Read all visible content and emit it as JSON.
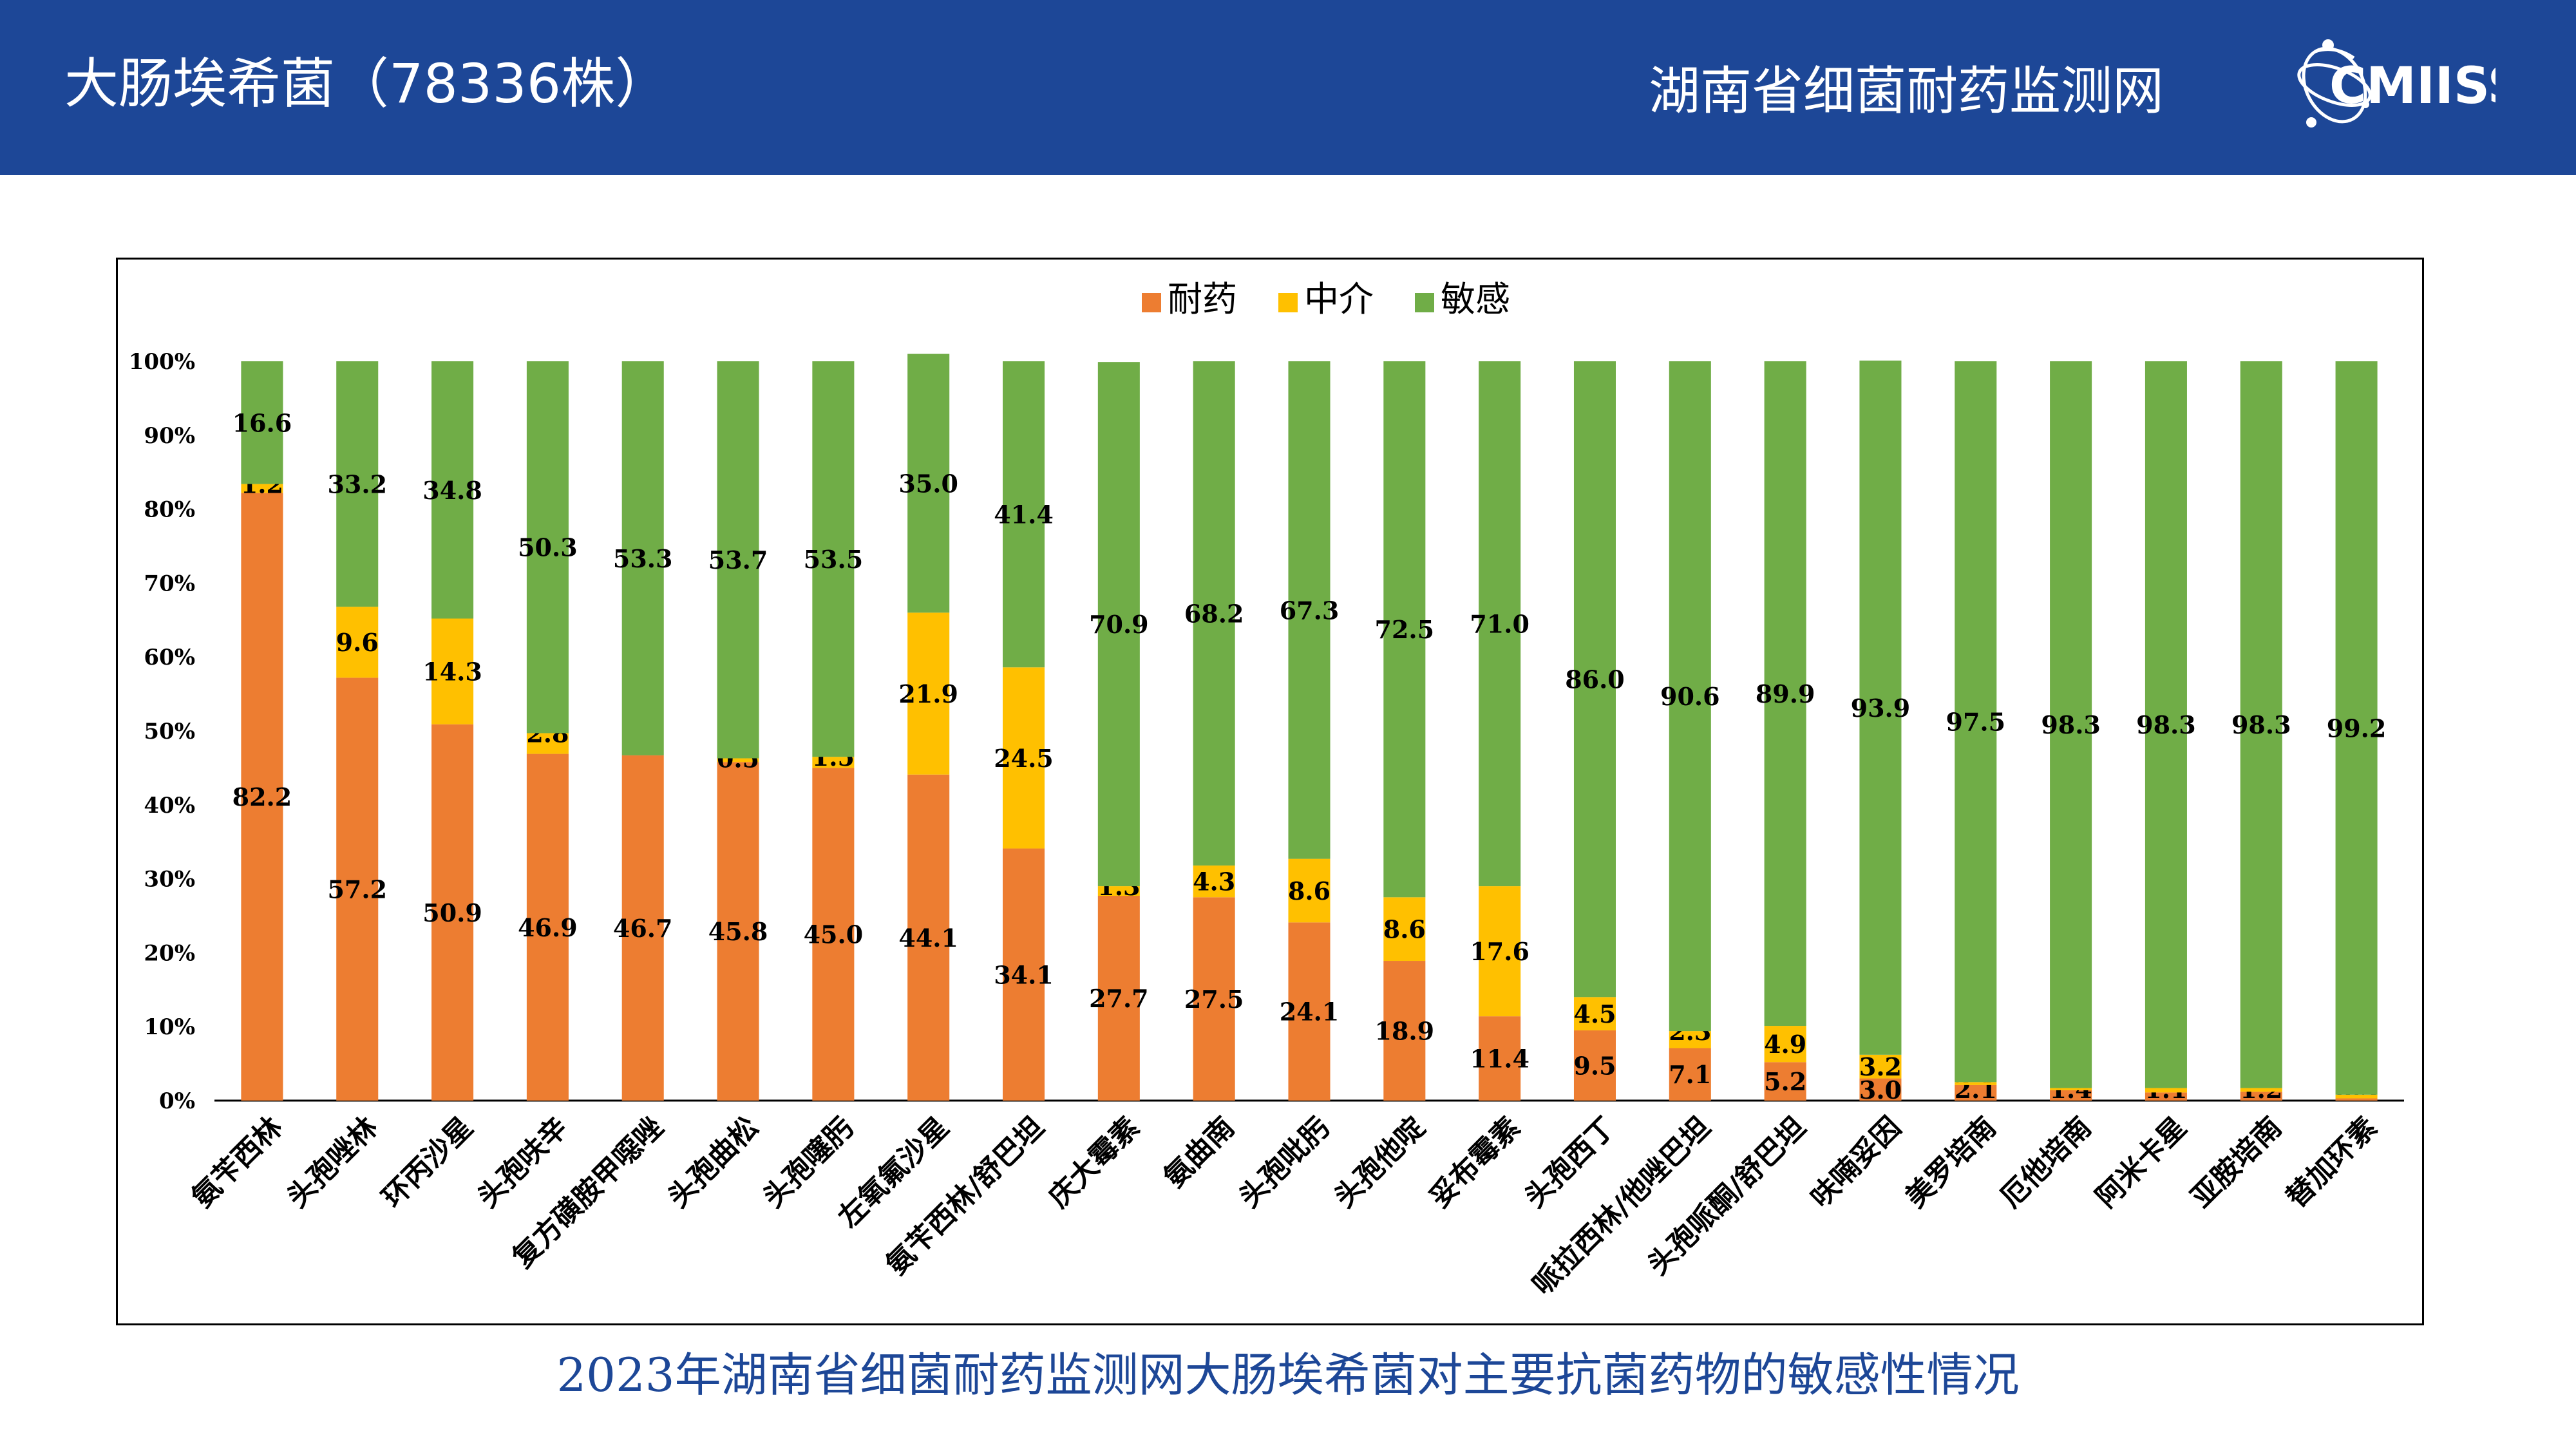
{
  "header": {
    "title": "大肠埃希菌（78336株）",
    "network_name": "湖南省细菌耐药监测网",
    "logo_text": "CMIISS",
    "background_color": "#1d4797"
  },
  "caption": "2023年湖南省细菌耐药监测网大肠埃希菌对主要抗菌药物的敏感性情况",
  "chart_data": {
    "type": "bar",
    "stacked": true,
    "percent_stacked": true,
    "title": "",
    "xlabel": "",
    "ylabel": "",
    "ylim": [
      0,
      100
    ],
    "yticks": [
      "0%",
      "10%",
      "20%",
      "30%",
      "40%",
      "50%",
      "60%",
      "70%",
      "80%",
      "90%",
      "100%"
    ],
    "legend_position": "top-center",
    "grid": false,
    "categories": [
      "氨苄西林",
      "头孢唑林",
      "环丙沙星",
      "头孢呋辛",
      "复方磺胺甲噁唑",
      "头孢曲松",
      "头孢噻肟",
      "左氧氟沙星",
      "氨苄西林/舒巴坦",
      "庆大霉素",
      "氨曲南",
      "头孢吡肟",
      "头孢他啶",
      "妥布霉素",
      "头孢西丁",
      "哌拉西林/他唑巴坦",
      "头孢哌酮/舒巴坦",
      "呋喃妥因",
      "美罗培南",
      "厄他培南",
      "阿米卡星",
      "亚胺培南",
      "替加环素"
    ],
    "series": [
      {
        "name": "耐药",
        "color": "#ed7d31",
        "values": [
          82.2,
          57.2,
          50.9,
          46.9,
          46.7,
          45.8,
          45.0,
          44.1,
          34.1,
          27.7,
          27.5,
          24.1,
          18.9,
          11.4,
          9.5,
          7.1,
          5.2,
          3.0,
          2.1,
          1.4,
          1.1,
          1.2,
          0.3
        ]
      },
      {
        "name": "中介",
        "color": "#ffc000",
        "values": [
          1.2,
          9.6,
          14.3,
          2.8,
          0,
          0.5,
          1.5,
          21.9,
          24.5,
          1.3,
          4.3,
          8.6,
          8.6,
          17.6,
          4.5,
          2.3,
          4.9,
          3.2,
          0.4,
          0.3,
          0.6,
          0.5,
          0.5
        ]
      },
      {
        "name": "敏感",
        "color": "#70ad47",
        "values": [
          16.6,
          33.2,
          34.8,
          50.3,
          53.3,
          53.7,
          53.5,
          35.0,
          41.4,
          70.9,
          68.2,
          67.3,
          72.5,
          71.0,
          86.0,
          90.6,
          89.9,
          93.9,
          97.5,
          98.3,
          98.3,
          98.3,
          99.2
        ]
      }
    ],
    "data_labels": {
      "耐药": [
        "82.2",
        "57.2",
        "50.9",
        "46.9",
        "46.7",
        "45.8",
        "45.0",
        "44.1",
        "34.1",
        "27.7",
        "27.5",
        "24.1",
        "18.9",
        "11.4",
        "9.5",
        "7.1",
        "5.2",
        "3.0",
        "2.1",
        "1.4",
        "1.1",
        "1.2",
        "0.3"
      ],
      "中介": [
        "1.2",
        "9.6",
        "14.3",
        "2.8",
        "",
        "0.5",
        "1.5",
        "21.9",
        "24.5",
        "1.3",
        "4.3",
        "8.6",
        "8.6",
        "17.6",
        "4.5",
        "2.3",
        "4.9",
        "3.2",
        "",
        "",
        "",
        "",
        ""
      ],
      "敏感": [
        "16.6",
        "33.2",
        "34.8",
        "50.3",
        "53.3",
        "53.7",
        "53.5",
        "35.0",
        "41.4",
        "70.9",
        "68.2",
        "67.3",
        "72.5",
        "71.0",
        "86.0",
        "90.6",
        "89.9",
        "93.9",
        "97.5",
        "98.3",
        "98.3",
        "98.3",
        "99.2"
      ]
    }
  }
}
